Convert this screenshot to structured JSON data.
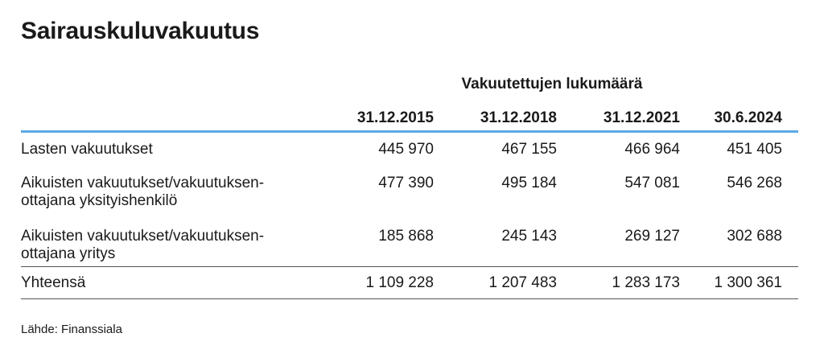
{
  "title": "Sairauskuluvakuutus",
  "group_header": "Vakuutettujen lukumäärä",
  "columns": [
    "31.12.2015",
    "31.12.2018",
    "31.12.2021",
    "30.6.2024"
  ],
  "rows": [
    {
      "label": "Lasten vakuutukset",
      "values": [
        "445 970",
        "467 155",
        "466 964",
        "451 405"
      ]
    },
    {
      "label": "Aikuisten vakuutukset/vakuutuksen-ottajana yksityishenkilö",
      "label_lines": [
        "Aikuisten vakuutukset/vakuutuksen-",
        "ottajana yksityishenkilö"
      ],
      "values": [
        "477 390",
        "495 184",
        "547 081",
        "546 268"
      ]
    },
    {
      "label": "Aikuisten vakuutukset/vakuutuksen-ottajana yritys",
      "label_lines": [
        "Aikuisten vakuutukset/vakuutuksen-",
        "ottajana yritys"
      ],
      "values": [
        "185 868",
        "245 143",
        "269 127",
        "302 688"
      ]
    }
  ],
  "total": {
    "label": "Yhteensä",
    "values": [
      "1 109 228",
      "1 207 483",
      "1 283 173",
      "1 300 361"
    ]
  },
  "source": "Lähde: Finanssiala",
  "colors": {
    "header_rule": "#5aa9e6",
    "row_rule": "#555555",
    "text": "#1a1a1a"
  }
}
